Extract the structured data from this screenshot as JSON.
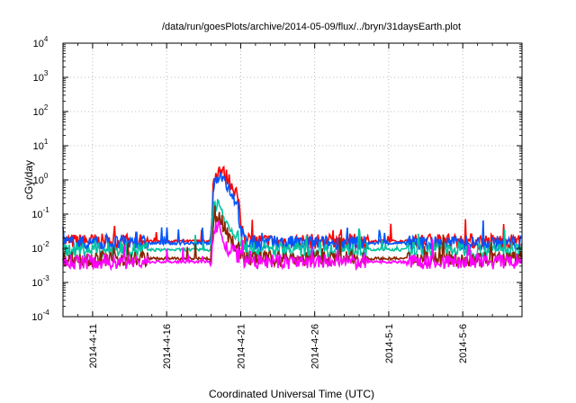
{
  "chart_data": {
    "type": "line",
    "title": "/data/run/goesPlots/archive/2014-05-09/flux/../bryn/31daysEarth.plot",
    "xlabel": "Coordinated Universal Time (UTC)",
    "ylabel": "cGy/day",
    "y_scale": "log",
    "ylim": [
      0.0001,
      10000
    ],
    "y_ticks": [
      {
        "base": "10",
        "exp": "-4"
      },
      {
        "base": "10",
        "exp": "-3"
      },
      {
        "base": "10",
        "exp": "-2"
      },
      {
        "base": "10",
        "exp": "-1"
      },
      {
        "base": "10",
        "exp": "0"
      },
      {
        "base": "10",
        "exp": "1"
      },
      {
        "base": "10",
        "exp": "2"
      },
      {
        "base": "10",
        "exp": "3"
      },
      {
        "base": "10",
        "exp": "4"
      }
    ],
    "xlim": [
      "2014-04-09",
      "2014-05-10"
    ],
    "x_ticks": [
      "2014-4-11",
      "2014-4-16",
      "2014-4-21",
      "2014-4-26",
      "2014-5-1",
      "2014-5-6"
    ],
    "grid": true,
    "series": [
      {
        "color": "#ff0000",
        "baseline": 0.016,
        "points": [
          [
            "2014-04-09",
            0.016
          ],
          [
            "2014-04-14",
            0.016
          ],
          [
            "2014-04-19",
            0.016
          ],
          [
            "2014-04-19.15",
            0.9
          ],
          [
            "2014-04-19.5",
            2.2
          ],
          [
            "2014-04-19.85",
            1.6
          ],
          [
            "2014-04-20.3",
            0.9
          ],
          [
            "2014-04-20.8",
            0.35
          ],
          [
            "2014-04-21",
            0.05
          ],
          [
            "2014-04-21.4",
            0.016
          ],
          [
            "2014-05-10",
            0.016
          ]
        ]
      },
      {
        "color": "#0055ff",
        "baseline": 0.014,
        "points": [
          [
            "2014-04-09",
            0.014
          ],
          [
            "2014-04-14",
            0.014
          ],
          [
            "2014-04-19",
            0.014
          ],
          [
            "2014-04-19.15",
            0.6
          ],
          [
            "2014-04-19.5",
            1.5
          ],
          [
            "2014-04-19.85",
            1.0
          ],
          [
            "2014-04-20.3",
            0.5
          ],
          [
            "2014-04-20.8",
            0.2
          ],
          [
            "2014-04-21",
            0.03
          ],
          [
            "2014-04-21.4",
            0.014
          ],
          [
            "2014-05-10",
            0.014
          ]
        ]
      },
      {
        "color": "#00c4a0",
        "baseline": 0.009,
        "points": [
          [
            "2014-04-09",
            0.009
          ],
          [
            "2014-04-19",
            0.009
          ],
          [
            "2014-04-19.15",
            0.15
          ],
          [
            "2014-04-19.5",
            0.25
          ],
          [
            "2014-04-20",
            0.05
          ],
          [
            "2014-04-20.8",
            0.02
          ],
          [
            "2014-04-21.4",
            0.009
          ],
          [
            "2014-05-10",
            0.009
          ]
        ]
      },
      {
        "color": "#8b2500",
        "baseline": 0.005,
        "points": [
          [
            "2014-04-09",
            0.005
          ],
          [
            "2014-04-19",
            0.005
          ],
          [
            "2014-04-19.15",
            0.06
          ],
          [
            "2014-04-19.5",
            0.1
          ],
          [
            "2014-04-20",
            0.03
          ],
          [
            "2014-04-20.8",
            0.01
          ],
          [
            "2014-04-21.4",
            0.005
          ],
          [
            "2014-05-10",
            0.005
          ]
        ]
      },
      {
        "color": "#ff00ff",
        "baseline": 0.004,
        "points": [
          [
            "2014-04-09",
            0.004
          ],
          [
            "2014-04-19",
            0.004
          ],
          [
            "2014-04-19.15",
            0.03
          ],
          [
            "2014-04-19.5",
            0.05
          ],
          [
            "2014-04-20",
            0.01
          ],
          [
            "2014-04-20.8",
            0.006
          ],
          [
            "2014-04-21.4",
            0.004
          ],
          [
            "2014-05-10",
            0.004
          ]
        ]
      }
    ]
  }
}
